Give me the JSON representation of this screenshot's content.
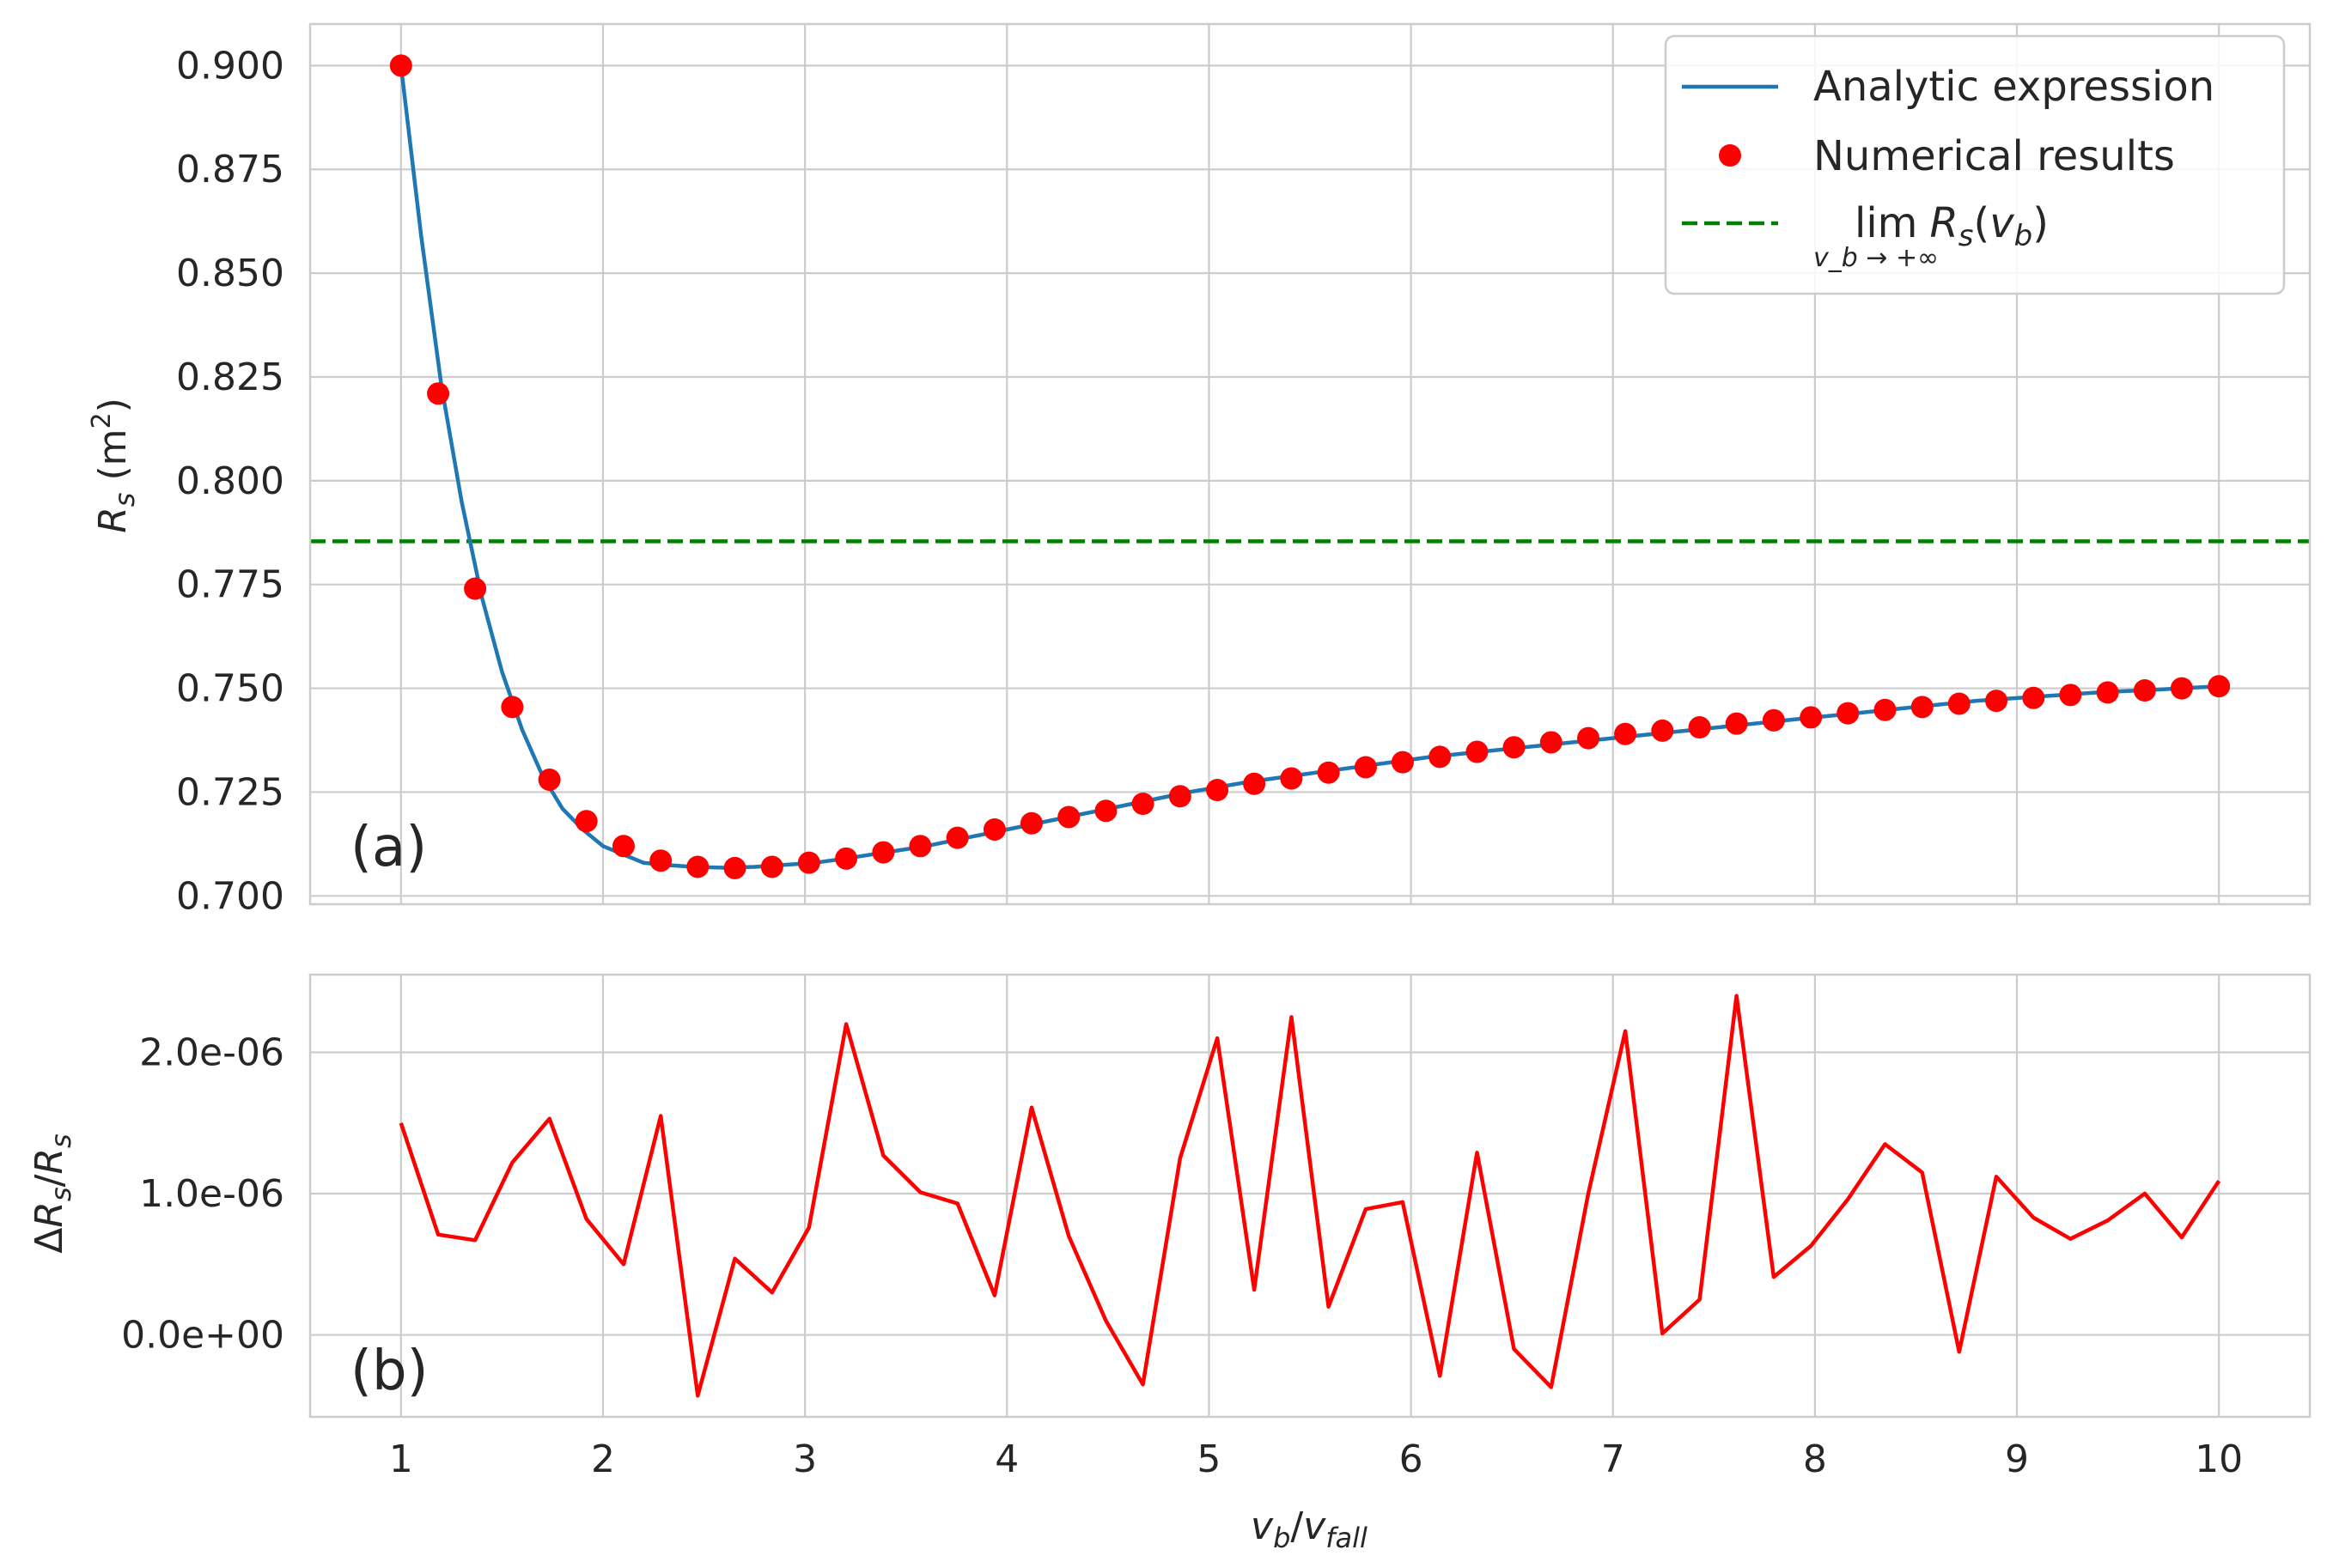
{
  "chart_data": [
    {
      "type": "line",
      "panel_label": "(a)",
      "ylabel": "R_s (m²)",
      "xlim": [
        0.55,
        10.45
      ],
      "ylim": [
        0.698,
        0.91
      ],
      "x_ticks": [
        "1",
        "2",
        "3",
        "4",
        "5",
        "6",
        "7",
        "8",
        "9",
        "10"
      ],
      "y_ticks": [
        "0.700",
        "0.725",
        "0.750",
        "0.775",
        "0.800",
        "0.825",
        "0.850",
        "0.875",
        "0.900"
      ],
      "grid": true,
      "legend": {
        "placement": "upper right",
        "entries": [
          {
            "label": "Analytic expression",
            "kind": "line",
            "color": "#1f77b4"
          },
          {
            "label": "Numerical results",
            "kind": "scatter",
            "color": "#ff0000"
          },
          {
            "label": "lim R_s(v_b)",
            "sub": "v_b → +∞",
            "kind": "dashed",
            "color": "#008000"
          }
        ]
      },
      "series": [
        {
          "name": "Analytic expression",
          "type": "line",
          "color": "#1f77b4",
          "x": [
            1.0,
            1.1,
            1.2,
            1.3,
            1.4,
            1.5,
            1.6,
            1.7,
            1.8,
            1.9,
            2.0,
            2.1,
            2.2,
            2.3,
            2.45,
            2.6,
            2.75,
            2.9,
            3.05,
            3.2,
            3.4,
            3.6,
            3.8,
            4.0,
            4.3,
            4.6,
            4.9,
            5.2,
            5.5,
            5.8,
            6.1,
            6.4,
            6.7,
            7.0,
            7.3,
            7.6,
            7.9,
            8.2,
            8.5,
            8.8,
            9.1,
            9.4,
            9.7,
            10.0
          ],
          "y": [
            0.9,
            0.859,
            0.823,
            0.795,
            0.772,
            0.754,
            0.74,
            0.729,
            0.721,
            0.716,
            0.712,
            0.71,
            0.708,
            0.7075,
            0.707,
            0.7068,
            0.707,
            0.7075,
            0.708,
            0.709,
            0.7105,
            0.712,
            0.714,
            0.716,
            0.719,
            0.722,
            0.725,
            0.7275,
            0.7295,
            0.7315,
            0.7335,
            0.735,
            0.7365,
            0.738,
            0.7395,
            0.741,
            0.7425,
            0.744,
            0.7455,
            0.747,
            0.748,
            0.749,
            0.7497,
            0.7505
          ]
        },
        {
          "name": "Numerical results",
          "type": "scatter",
          "color": "#ff0000",
          "x": [
            1.0,
            1.184,
            1.367,
            1.551,
            1.735,
            1.918,
            2.102,
            2.286,
            2.469,
            2.653,
            2.837,
            3.02,
            3.204,
            3.388,
            3.571,
            3.755,
            3.939,
            4.122,
            4.306,
            4.49,
            4.673,
            4.857,
            5.041,
            5.224,
            5.408,
            5.592,
            5.776,
            5.959,
            6.143,
            6.327,
            6.51,
            6.694,
            6.878,
            7.061,
            7.245,
            7.429,
            7.612,
            7.796,
            7.98,
            8.163,
            8.347,
            8.531,
            8.714,
            8.898,
            9.082,
            9.265,
            9.449,
            9.633,
            9.816,
            10.0
          ],
          "y": [
            0.9,
            0.821,
            0.774,
            0.7455,
            0.728,
            0.718,
            0.712,
            0.7085,
            0.707,
            0.7067,
            0.707,
            0.708,
            0.709,
            0.7105,
            0.712,
            0.714,
            0.716,
            0.7175,
            0.719,
            0.7205,
            0.7222,
            0.724,
            0.7255,
            0.727,
            0.7283,
            0.7297,
            0.731,
            0.7322,
            0.7335,
            0.7347,
            0.7358,
            0.737,
            0.738,
            0.739,
            0.7398,
            0.7406,
            0.7415,
            0.7423,
            0.743,
            0.744,
            0.7448,
            0.7455,
            0.7463,
            0.747,
            0.7477,
            0.7484,
            0.749,
            0.7495,
            0.75,
            0.7505
          ]
        },
        {
          "name": "lim R_s(v_b)",
          "type": "hline",
          "color": "#008000",
          "y": 0.7854
        }
      ]
    },
    {
      "type": "line",
      "panel_label": "(b)",
      "ylabel": "ΔR_s/R_s",
      "xlabel": "v_b/v_fall",
      "xlim": [
        0.55,
        10.45
      ],
      "ylim": [
        -5.8e-07,
        2.55e-06
      ],
      "x_ticks": [
        "1",
        "2",
        "3",
        "4",
        "5",
        "6",
        "7",
        "8",
        "9",
        "10"
      ],
      "y_ticks": [
        "0.0e+00",
        "1.0e-06",
        "2.0e-06"
      ],
      "y_tick_values": [
        0,
        1e-06,
        2e-06
      ],
      "grid": true,
      "series": [
        {
          "name": "",
          "type": "line",
          "color": "#ff0000",
          "x": [
            1.0,
            1.184,
            1.367,
            1.551,
            1.735,
            1.918,
            2.102,
            2.286,
            2.469,
            2.653,
            2.837,
            3.02,
            3.204,
            3.388,
            3.571,
            3.755,
            3.939,
            4.122,
            4.306,
            4.49,
            4.673,
            4.857,
            5.041,
            5.224,
            5.408,
            5.592,
            5.776,
            5.959,
            6.143,
            6.327,
            6.51,
            6.694,
            6.878,
            7.061,
            7.245,
            7.429,
            7.612,
            7.796,
            7.98,
            8.163,
            8.347,
            8.531,
            8.714,
            8.898,
            9.082,
            9.265,
            9.449,
            9.633,
            9.816,
            10.0
          ],
          "y": [
            1.5e-06,
            7.1e-07,
            6.7e-07,
            1.22e-06,
            1.53e-06,
            8.2e-07,
            5e-07,
            1.55e-06,
            -4.3e-07,
            5.4e-07,
            3e-07,
            7.6e-07,
            2.2e-06,
            1.27e-06,
            1.01e-06,
            9.3e-07,
            2.8e-07,
            1.61e-06,
            7e-07,
            1e-07,
            -3.5e-07,
            1.25e-06,
            2.1e-06,
            3.2e-07,
            2.25e-06,
            2e-07,
            8.9e-07,
            9.4e-07,
            -2.9e-07,
            1.29e-06,
            -1e-07,
            -3.7e-07,
            1e-06,
            2.15e-06,
            1e-08,
            2.5e-07,
            2.4e-06,
            4.1e-07,
            6.3e-07,
            9.6e-07,
            1.35e-06,
            1.15e-06,
            -1.2e-07,
            1.12e-06,
            8.3e-07,
            6.8e-07,
            8.1e-07,
            1e-06,
            6.9e-07,
            1.09e-06
          ]
        }
      ]
    }
  ]
}
